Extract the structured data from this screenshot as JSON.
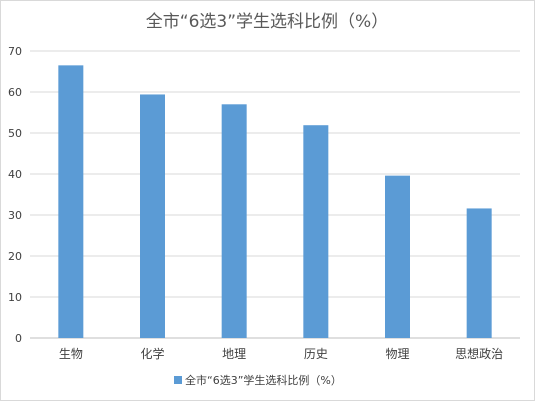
{
  "chart_data": {
    "type": "bar",
    "title": "全市“6选3”学生选科比例（%）",
    "categories": [
      "生物",
      "化学",
      "地理",
      "历史",
      "物理",
      "思想政治"
    ],
    "series": [
      {
        "name": "全市“6选3”学生选科比例（%）",
        "values": [
          66.5,
          59.4,
          57.0,
          51.9,
          39.6,
          31.6
        ],
        "color": "#5b9bd5"
      }
    ],
    "ylim": [
      0,
      70
    ],
    "yticks": [
      0,
      10,
      20,
      30,
      40,
      50,
      60,
      70
    ],
    "grid": true,
    "legend_position": "bottom"
  }
}
